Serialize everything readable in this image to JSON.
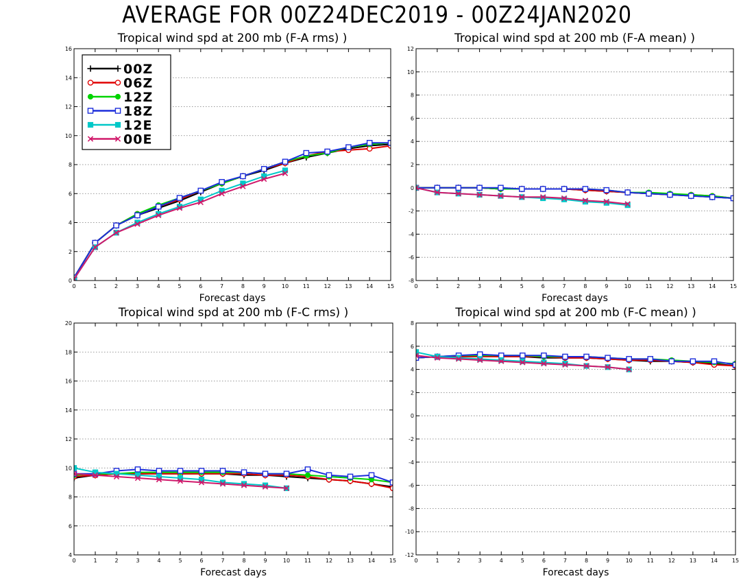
{
  "title": "AVERAGE FOR 00Z24DEC2019 - 00Z24JAN2020",
  "legend": [
    {
      "label": "00Z",
      "color": "#000000",
      "marker": "plus"
    },
    {
      "label": "06Z",
      "color": "#e00000",
      "marker": "circle"
    },
    {
      "label": "12Z",
      "color": "#00d400",
      "marker": "dot"
    },
    {
      "label": "18Z",
      "color": "#1c2ddb",
      "marker": "square"
    },
    {
      "label": "12E",
      "color": "#00c8c8",
      "marker": "filled-square"
    },
    {
      "label": "00E",
      "color": "#d0186a",
      "marker": "x"
    }
  ],
  "chart_data": [
    {
      "type": "line",
      "title": "Tropical wind spd at 200 mb (F-A rms) )",
      "xlabel": "Forecast days",
      "ylabel": "",
      "xlim": [
        0,
        15
      ],
      "ylim": [
        0,
        16
      ],
      "ytick_step": 2,
      "grid": true,
      "legend_position": "top-left",
      "series": [
        {
          "name": "00Z",
          "x": [
            0,
            1,
            2,
            3,
            4,
            5,
            6,
            7,
            8,
            9,
            10,
            11,
            12,
            13,
            14,
            15
          ],
          "values": [
            0.2,
            2.6,
            3.8,
            4.5,
            5.0,
            5.5,
            6.1,
            6.7,
            7.2,
            7.6,
            8.1,
            8.5,
            8.8,
            9.1,
            9.3,
            9.4
          ]
        },
        {
          "name": "06Z",
          "x": [
            0,
            1,
            2,
            3,
            4,
            5,
            6,
            7,
            8,
            9,
            10,
            11,
            12,
            13,
            14,
            15
          ],
          "values": [
            0.2,
            2.6,
            3.8,
            4.6,
            5.1,
            5.6,
            6.2,
            6.7,
            7.2,
            7.7,
            8.1,
            8.6,
            8.9,
            9.0,
            9.1,
            9.3
          ]
        },
        {
          "name": "12Z",
          "x": [
            0,
            1,
            2,
            3,
            4,
            5,
            6,
            7,
            8,
            9,
            10,
            11,
            12,
            13,
            14,
            15
          ],
          "values": [
            0.2,
            2.6,
            3.8,
            4.6,
            5.2,
            5.7,
            6.2,
            6.7,
            7.2,
            7.7,
            8.2,
            8.6,
            8.8,
            9.2,
            9.4,
            9.5
          ]
        },
        {
          "name": "18Z",
          "x": [
            0,
            1,
            2,
            3,
            4,
            5,
            6,
            7,
            8,
            9,
            10,
            11,
            12,
            13,
            14,
            15
          ],
          "values": [
            0.2,
            2.6,
            3.8,
            4.5,
            5.1,
            5.7,
            6.2,
            6.8,
            7.2,
            7.7,
            8.2,
            8.8,
            8.9,
            9.2,
            9.5,
            9.5
          ]
        },
        {
          "name": "12E",
          "x": [
            0,
            1,
            2,
            3,
            4,
            5,
            6,
            7,
            8,
            9,
            10
          ],
          "values": [
            0.1,
            2.3,
            3.3,
            4.0,
            4.6,
            5.1,
            5.6,
            6.2,
            6.7,
            7.2,
            7.6
          ]
        },
        {
          "name": "00E",
          "x": [
            0,
            1,
            2,
            3,
            4,
            5,
            6,
            7,
            8,
            9,
            10
          ],
          "values": [
            0.1,
            2.3,
            3.3,
            3.9,
            4.5,
            5.0,
            5.4,
            6.0,
            6.5,
            7.0,
            7.4
          ]
        }
      ]
    },
    {
      "type": "line",
      "title": "Tropical wind spd at 200 mb (F-A mean) )",
      "xlabel": "Forecast days",
      "ylabel": "",
      "xlim": [
        0,
        15
      ],
      "ylim": [
        -8,
        12
      ],
      "ytick_step": 2,
      "grid": true,
      "series": [
        {
          "name": "00Z",
          "x": [
            0,
            1,
            2,
            3,
            4,
            5,
            6,
            7,
            8,
            9,
            10,
            11,
            12,
            13,
            14,
            15
          ],
          "values": [
            0.0,
            0.0,
            0.0,
            0.0,
            -0.1,
            -0.1,
            -0.1,
            -0.1,
            -0.2,
            -0.3,
            -0.4,
            -0.5,
            -0.6,
            -0.7,
            -0.8,
            -0.9
          ]
        },
        {
          "name": "06Z",
          "x": [
            0,
            1,
            2,
            3,
            4,
            5,
            6,
            7,
            8,
            9,
            10,
            11,
            12,
            13,
            14,
            15
          ],
          "values": [
            0.0,
            0.0,
            0.0,
            0.0,
            -0.1,
            -0.1,
            -0.1,
            -0.1,
            -0.2,
            -0.3,
            -0.4,
            -0.5,
            -0.6,
            -0.6,
            -0.7,
            -0.9
          ]
        },
        {
          "name": "12Z",
          "x": [
            0,
            1,
            2,
            3,
            4,
            5,
            6,
            7,
            8,
            9,
            10,
            11,
            12,
            13,
            14,
            15
          ],
          "values": [
            0.0,
            0.0,
            0.0,
            0.0,
            -0.1,
            -0.1,
            -0.1,
            -0.1,
            -0.1,
            -0.2,
            -0.4,
            -0.4,
            -0.5,
            -0.6,
            -0.7,
            -0.9
          ]
        },
        {
          "name": "18Z",
          "x": [
            0,
            1,
            2,
            3,
            4,
            5,
            6,
            7,
            8,
            9,
            10,
            11,
            12,
            13,
            14,
            15
          ],
          "values": [
            0.0,
            0.0,
            0.0,
            0.0,
            0.0,
            -0.1,
            -0.1,
            -0.1,
            -0.1,
            -0.2,
            -0.4,
            -0.5,
            -0.6,
            -0.7,
            -0.8,
            -0.9
          ]
        },
        {
          "name": "12E",
          "x": [
            0,
            1,
            2,
            3,
            4,
            5,
            6,
            7,
            8,
            9,
            10
          ],
          "values": [
            0.0,
            -0.4,
            -0.5,
            -0.6,
            -0.7,
            -0.8,
            -0.9,
            -1.0,
            -1.2,
            -1.3,
            -1.5
          ]
        },
        {
          "name": "00E",
          "x": [
            0,
            1,
            2,
            3,
            4,
            5,
            6,
            7,
            8,
            9,
            10
          ],
          "values": [
            0.0,
            -0.4,
            -0.5,
            -0.6,
            -0.7,
            -0.8,
            -0.8,
            -0.9,
            -1.1,
            -1.2,
            -1.4
          ]
        }
      ]
    },
    {
      "type": "line",
      "title": "Tropical wind spd at 200 mb (F-C rms) )",
      "xlabel": "Forecast days",
      "ylabel": "",
      "xlim": [
        0,
        15
      ],
      "ylim": [
        4,
        20
      ],
      "ytick_step": 2,
      "grid": true,
      "series": [
        {
          "name": "00Z",
          "x": [
            0,
            1,
            2,
            3,
            4,
            5,
            6,
            7,
            8,
            9,
            10,
            11,
            12,
            13,
            14,
            15
          ],
          "values": [
            9.3,
            9.5,
            9.6,
            9.6,
            9.6,
            9.6,
            9.6,
            9.6,
            9.5,
            9.5,
            9.4,
            9.3,
            9.2,
            9.1,
            8.9,
            8.7
          ]
        },
        {
          "name": "06Z",
          "x": [
            0,
            1,
            2,
            3,
            4,
            5,
            6,
            7,
            8,
            9,
            10,
            11,
            12,
            13,
            14,
            15
          ],
          "values": [
            9.4,
            9.5,
            9.6,
            9.6,
            9.6,
            9.6,
            9.6,
            9.6,
            9.6,
            9.5,
            9.5,
            9.4,
            9.2,
            9.1,
            8.9,
            8.6
          ]
        },
        {
          "name": "12Z",
          "x": [
            0,
            1,
            2,
            3,
            4,
            5,
            6,
            7,
            8,
            9,
            10,
            11,
            12,
            13,
            14,
            15
          ],
          "values": [
            9.5,
            9.6,
            9.6,
            9.7,
            9.7,
            9.7,
            9.7,
            9.7,
            9.7,
            9.6,
            9.6,
            9.5,
            9.4,
            9.3,
            9.2,
            9.0
          ]
        },
        {
          "name": "18Z",
          "x": [
            0,
            1,
            2,
            3,
            4,
            5,
            6,
            7,
            8,
            9,
            10,
            11,
            12,
            13,
            14,
            15
          ],
          "values": [
            9.6,
            9.6,
            9.8,
            9.9,
            9.8,
            9.8,
            9.8,
            9.8,
            9.7,
            9.6,
            9.6,
            9.9,
            9.5,
            9.4,
            9.5,
            9.0
          ]
        },
        {
          "name": "12E",
          "x": [
            0,
            1,
            2,
            3,
            4,
            5,
            6,
            7,
            8,
            9,
            10
          ],
          "values": [
            10.0,
            9.7,
            9.6,
            9.5,
            9.4,
            9.3,
            9.2,
            9.0,
            8.9,
            8.8,
            8.6
          ]
        },
        {
          "name": "00E",
          "x": [
            0,
            1,
            2,
            3,
            4,
            5,
            6,
            7,
            8,
            9,
            10
          ],
          "values": [
            9.6,
            9.5,
            9.4,
            9.3,
            9.2,
            9.1,
            9.0,
            8.9,
            8.8,
            8.7,
            8.6
          ]
        }
      ]
    },
    {
      "type": "line",
      "title": "Tropical wind spd at 200 mb (F-C mean) )",
      "xlabel": "Forecast days",
      "ylabel": "",
      "xlim": [
        0,
        15
      ],
      "ylim": [
        -12,
        8
      ],
      "ytick_step": 2,
      "grid": true,
      "series": [
        {
          "name": "00Z",
          "x": [
            0,
            1,
            2,
            3,
            4,
            5,
            6,
            7,
            8,
            9,
            10,
            11,
            12,
            13,
            14,
            15
          ],
          "values": [
            5.0,
            5.1,
            5.1,
            5.1,
            5.1,
            5.1,
            5.0,
            5.0,
            5.0,
            4.9,
            4.8,
            4.7,
            4.7,
            4.6,
            4.5,
            4.3
          ]
        },
        {
          "name": "06Z",
          "x": [
            0,
            1,
            2,
            3,
            4,
            5,
            6,
            7,
            8,
            9,
            10,
            11,
            12,
            13,
            14,
            15
          ],
          "values": [
            5.0,
            5.1,
            5.1,
            5.1,
            5.1,
            5.1,
            5.1,
            5.0,
            5.0,
            4.9,
            4.8,
            4.8,
            4.7,
            4.6,
            4.4,
            4.3
          ]
        },
        {
          "name": "12Z",
          "x": [
            0,
            1,
            2,
            3,
            4,
            5,
            6,
            7,
            8,
            9,
            10,
            11,
            12,
            13,
            14,
            15
          ],
          "values": [
            5.0,
            5.1,
            5.2,
            5.2,
            5.2,
            5.2,
            5.1,
            5.1,
            5.1,
            5.0,
            4.9,
            4.9,
            4.8,
            4.7,
            4.6,
            4.5
          ]
        },
        {
          "name": "18Z",
          "x": [
            0,
            1,
            2,
            3,
            4,
            5,
            6,
            7,
            8,
            9,
            10,
            11,
            12,
            13,
            14,
            15
          ],
          "values": [
            5.0,
            5.1,
            5.2,
            5.3,
            5.2,
            5.2,
            5.2,
            5.1,
            5.1,
            5.0,
            4.9,
            4.9,
            4.7,
            4.7,
            4.7,
            4.4
          ]
        },
        {
          "name": "12E",
          "x": [
            0,
            1,
            2,
            3,
            4,
            5,
            6,
            7,
            8,
            9,
            10
          ],
          "values": [
            5.5,
            5.1,
            5.0,
            4.9,
            4.8,
            4.7,
            4.6,
            4.5,
            4.3,
            4.2,
            4.0
          ]
        },
        {
          "name": "00E",
          "x": [
            0,
            1,
            2,
            3,
            4,
            5,
            6,
            7,
            8,
            9,
            10
          ],
          "values": [
            5.2,
            5.0,
            4.9,
            4.8,
            4.7,
            4.6,
            4.5,
            4.4,
            4.3,
            4.2,
            4.0
          ]
        }
      ]
    }
  ]
}
